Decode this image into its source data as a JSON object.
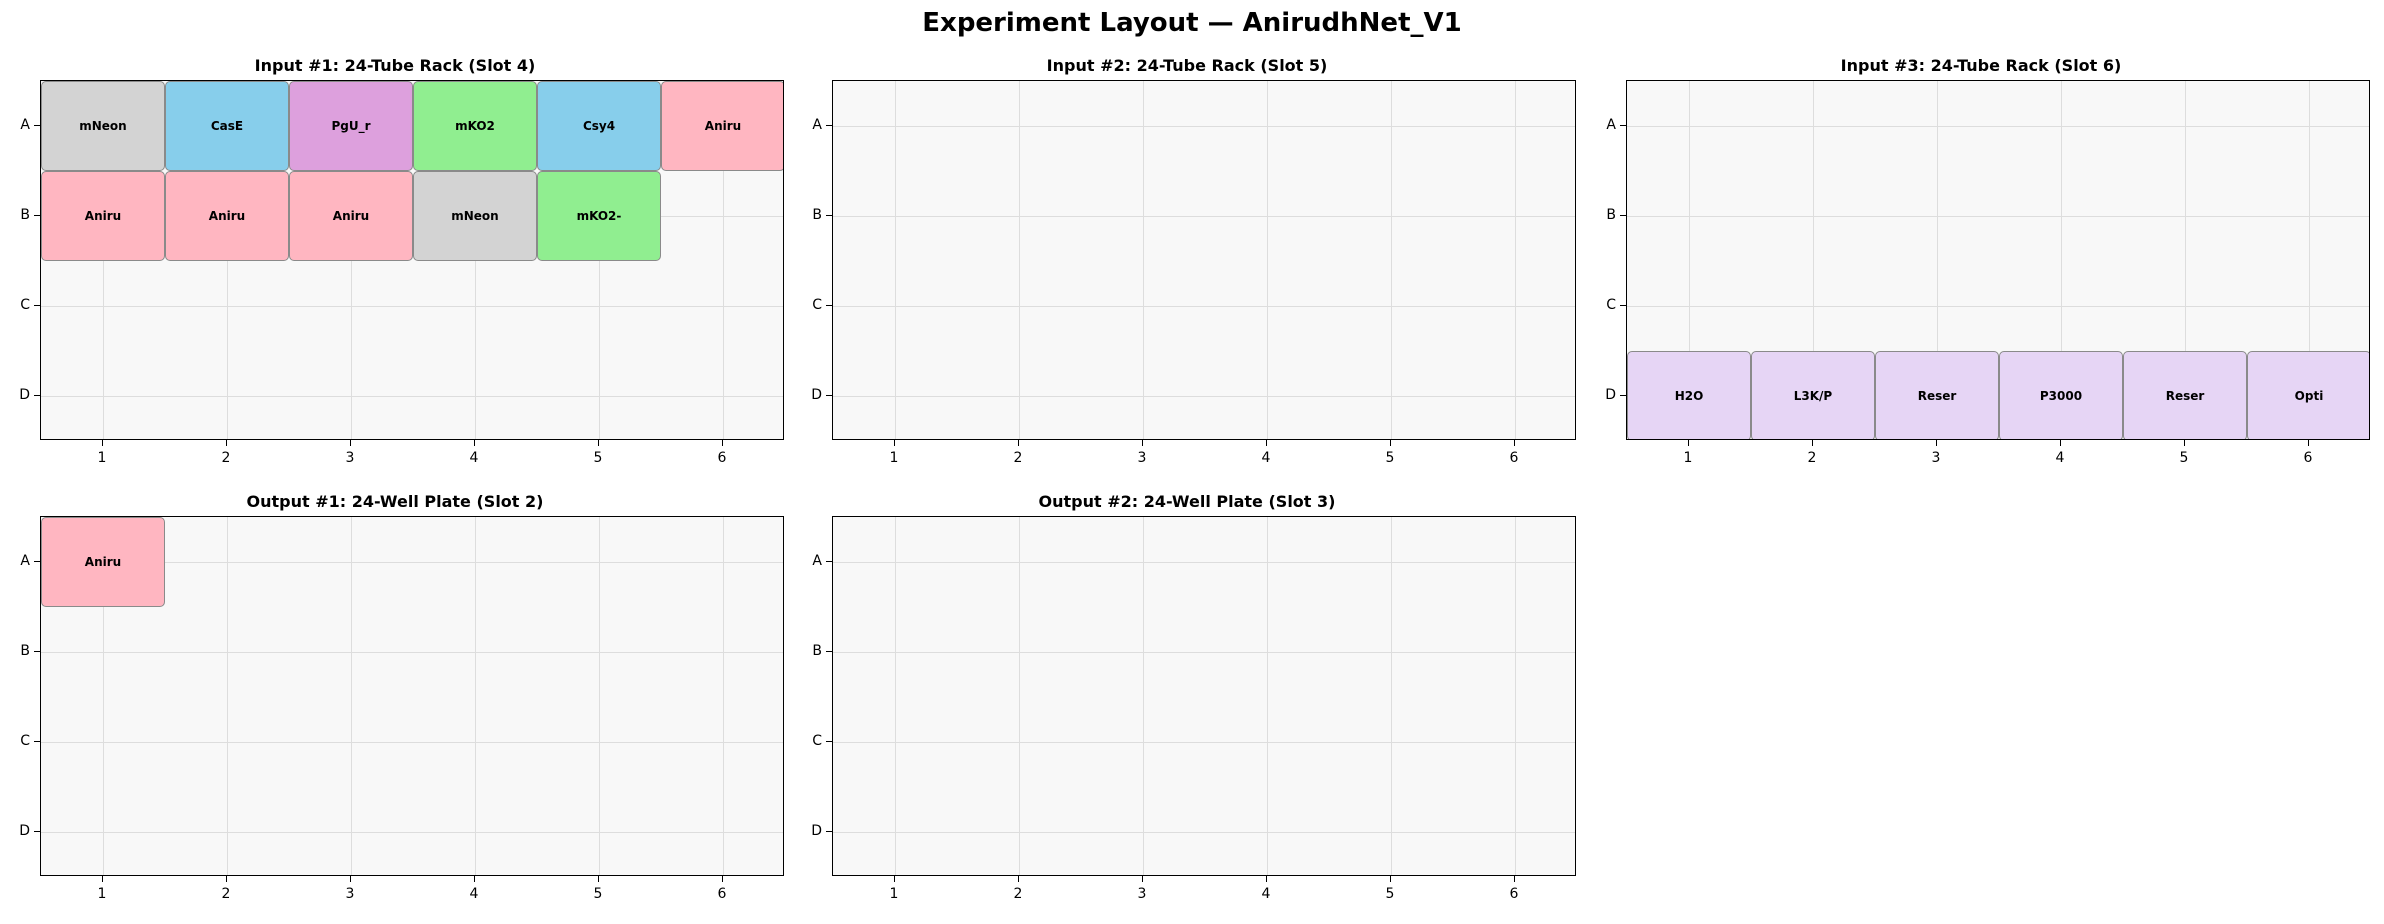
{
  "title": "Experiment Layout — AnirudhNet_V1",
  "rows": [
    "A",
    "B",
    "C",
    "D"
  ],
  "cols": [
    "1",
    "2",
    "3",
    "4",
    "5",
    "6"
  ],
  "colors": {
    "gray": "#d3d3d3",
    "blue": "#87ceeb",
    "violet": "#dda0dd",
    "green": "#90ee90",
    "pink": "#ffb6c1",
    "lavender": "#e6d5f5"
  },
  "panels": [
    {
      "title": "Input #1: 24-Tube Rack (Slot 4)",
      "wells": [
        {
          "row": "A",
          "col": 1,
          "label": "mNeon",
          "color": "gray"
        },
        {
          "row": "A",
          "col": 2,
          "label": "CasE",
          "color": "blue"
        },
        {
          "row": "A",
          "col": 3,
          "label": "PgU_r",
          "color": "violet"
        },
        {
          "row": "A",
          "col": 4,
          "label": "mKO2",
          "color": "green"
        },
        {
          "row": "A",
          "col": 5,
          "label": "Csy4",
          "color": "blue"
        },
        {
          "row": "A",
          "col": 6,
          "label": "Aniru",
          "color": "pink"
        },
        {
          "row": "B",
          "col": 1,
          "label": "Aniru",
          "color": "pink"
        },
        {
          "row": "B",
          "col": 2,
          "label": "Aniru",
          "color": "pink"
        },
        {
          "row": "B",
          "col": 3,
          "label": "Aniru",
          "color": "pink"
        },
        {
          "row": "B",
          "col": 4,
          "label": "mNeon",
          "color": "gray"
        },
        {
          "row": "B",
          "col": 5,
          "label": "mKO2-",
          "color": "green"
        }
      ]
    },
    {
      "title": "Input #2: 24-Tube Rack (Slot 5)",
      "wells": []
    },
    {
      "title": "Input #3: 24-Tube Rack (Slot 6)",
      "wells": [
        {
          "row": "D",
          "col": 1,
          "label": "H2O",
          "color": "lavender"
        },
        {
          "row": "D",
          "col": 2,
          "label": "L3K/P",
          "color": "lavender"
        },
        {
          "row": "D",
          "col": 3,
          "label": "Reser",
          "color": "lavender"
        },
        {
          "row": "D",
          "col": 4,
          "label": "P3000",
          "color": "lavender"
        },
        {
          "row": "D",
          "col": 5,
          "label": "Reser",
          "color": "lavender"
        },
        {
          "row": "D",
          "col": 6,
          "label": "Opti",
          "color": "lavender"
        }
      ]
    },
    {
      "title": "Output #1: 24-Well Plate (Slot 2)",
      "wells": [
        {
          "row": "A",
          "col": 1,
          "label": "Aniru",
          "color": "pink"
        }
      ]
    },
    {
      "title": "Output #2: 24-Well Plate (Slot 3)",
      "wells": []
    }
  ]
}
